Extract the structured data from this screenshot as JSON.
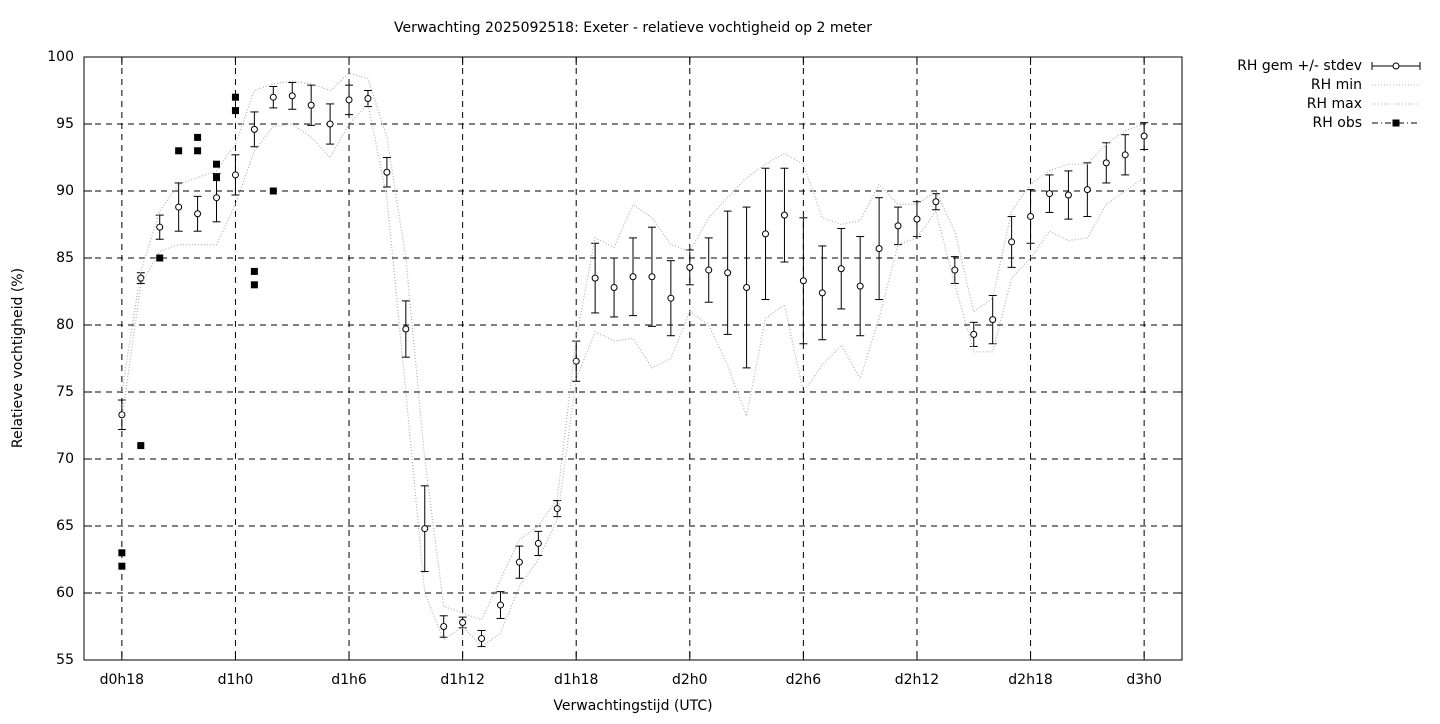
{
  "chart_data": {
    "type": "errorbar",
    "title": "Verwachting 2025092518: Exeter - relatieve vochtigheid op 2 meter",
    "xlabel": "Verwachtingstijd (UTC)",
    "ylabel": "Relatieve vochtigheid (%)",
    "x": [
      18,
      19,
      20,
      21,
      22,
      23,
      24,
      25,
      26,
      27,
      28,
      29,
      30,
      31,
      32,
      33,
      34,
      35,
      36,
      37,
      38,
      39,
      40,
      41,
      42,
      43,
      44,
      45,
      46,
      47,
      48,
      49,
      50,
      51,
      52,
      53,
      54,
      55,
      56,
      57,
      58,
      59,
      60,
      61,
      62,
      63,
      64,
      65,
      66,
      67,
      68,
      69,
      70,
      71,
      72
    ],
    "series": [
      {
        "name": "RH gem +/- stdev",
        "color": "#000000",
        "values": [
          73.3,
          83.5,
          87.3,
          88.8,
          88.3,
          89.5,
          91.2,
          94.6,
          97.0,
          97.1,
          96.4,
          95.0,
          96.8,
          96.9,
          91.4,
          79.7,
          64.8,
          57.5,
          57.8,
          56.6,
          59.1,
          62.3,
          63.7,
          66.3,
          77.3,
          83.5,
          82.8,
          83.6,
          83.6,
          82.0,
          84.3,
          84.1,
          83.9,
          82.8,
          86.8,
          88.2,
          83.3,
          82.4,
          84.2,
          82.9,
          85.7,
          87.4,
          87.9,
          89.2,
          84.1,
          79.3,
          80.4,
          86.2,
          88.1,
          89.8,
          89.7,
          90.1,
          92.1,
          92.7,
          94.1
        ],
        "errors": [
          1.1,
          0.4,
          0.9,
          1.8,
          1.3,
          1.8,
          1.5,
          1.3,
          0.8,
          1.0,
          1.5,
          1.5,
          1.1,
          0.6,
          1.1,
          2.1,
          3.2,
          0.8,
          0.4,
          0.6,
          1.0,
          1.2,
          0.9,
          0.6,
          1.5,
          2.6,
          2.2,
          2.9,
          3.7,
          2.8,
          1.3,
          2.4,
          4.6,
          6.0,
          4.9,
          3.5,
          4.7,
          3.5,
          3.0,
          3.7,
          3.8,
          1.4,
          1.3,
          0.6,
          1.0,
          0.9,
          1.8,
          1.9,
          2.0,
          1.4,
          1.8,
          2.0,
          1.5,
          1.5,
          1.0
        ]
      },
      {
        "name": "RH min",
        "color": "#b0b0b0",
        "values": [
          73,
          83,
          85.5,
          86,
          86,
          86,
          89,
          93,
          94.8,
          95,
          94,
          92.5,
          95,
          96.5,
          89.5,
          75,
          60,
          56.5,
          57.5,
          56,
          57,
          60.5,
          62.5,
          65.5,
          76,
          79.5,
          78.8,
          79,
          76.8,
          77.5,
          81,
          80,
          77,
          73.2,
          80.5,
          81.5,
          75,
          77,
          78.5,
          76,
          80.5,
          86,
          86.5,
          88.5,
          83,
          78,
          78,
          83.5,
          85,
          87,
          86.3,
          86.5,
          89,
          90,
          91
        ]
      },
      {
        "name": "RH max",
        "color": "#b0b0b0",
        "values": [
          75,
          84,
          88.5,
          90.5,
          91,
          91.5,
          93.5,
          97.5,
          98,
          98.2,
          98,
          97.5,
          98.8,
          98.4,
          94,
          85,
          70,
          59,
          58.5,
          58,
          61,
          64,
          65,
          67,
          79,
          86.5,
          85.8,
          89,
          88,
          86,
          85.5,
          88,
          89.5,
          91,
          92,
          92.8,
          92,
          88,
          87.5,
          87.8,
          90.5,
          89,
          89,
          90,
          87,
          81,
          82,
          88.5,
          90.5,
          91.5,
          92,
          92,
          93.5,
          94.5,
          95
        ]
      },
      {
        "name": "RH obs",
        "color": "#000000",
        "x": [
          18,
          18,
          19,
          20,
          21,
          22,
          22,
          23,
          23,
          24,
          24,
          25,
          25,
          26
        ],
        "values": [
          63,
          62,
          71,
          85,
          93,
          94,
          93,
          92,
          91,
          97,
          96,
          84,
          83,
          90
        ]
      }
    ],
    "xlim": [
      16,
      74
    ],
    "xticks": [
      {
        "value": 18,
        "label": "d0h18"
      },
      {
        "value": 24,
        "label": "d1h0"
      },
      {
        "value": 30,
        "label": "d1h6"
      },
      {
        "value": 36,
        "label": "d1h12"
      },
      {
        "value": 42,
        "label": "d1h18"
      },
      {
        "value": 48,
        "label": "d2h0"
      },
      {
        "value": 54,
        "label": "d2h6"
      },
      {
        "value": 60,
        "label": "d2h12"
      },
      {
        "value": 66,
        "label": "d2h18"
      },
      {
        "value": 72,
        "label": "d3h0"
      }
    ],
    "ylim": [
      55,
      100
    ],
    "yticks": [
      55,
      60,
      65,
      70,
      75,
      80,
      85,
      90,
      95,
      100
    ],
    "grid": true
  }
}
